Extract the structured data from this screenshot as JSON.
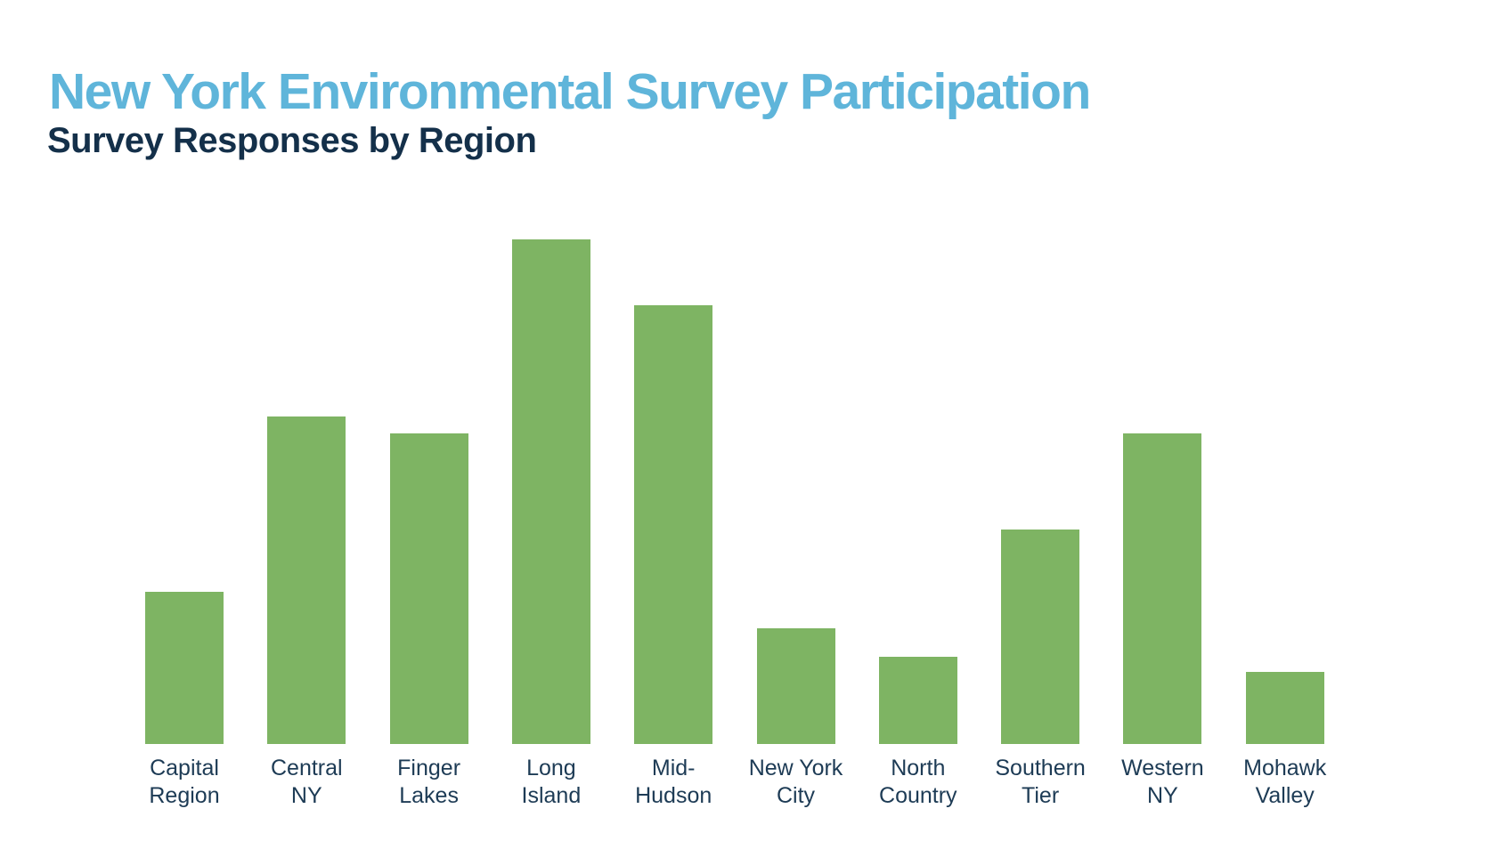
{
  "page": {
    "background_color": "#ffffff"
  },
  "header": {
    "title": "New York Environmental Survey Participation",
    "subtitle": "Survey Responses by Region",
    "title_color": "#5fb5da",
    "subtitle_color": "#14304a"
  },
  "chart_data": {
    "type": "bar",
    "title": "New York Environmental Survey Participation",
    "subtitle": "Survey Responses by Region",
    "categories": [
      "Capital Region",
      "Central NY",
      "Finger Lakes",
      "Long Island",
      "Mid-Hudson",
      "New York City",
      "North Country",
      "Southern Tier",
      "Western NY",
      "Mohawk Valley"
    ],
    "category_label_lines": [
      [
        "Capital",
        "Region"
      ],
      [
        "Central",
        "NY"
      ],
      [
        "Finger",
        "Lakes"
      ],
      [
        "Long",
        "Island"
      ],
      [
        "Mid-",
        "Hudson"
      ],
      [
        "New York",
        "City"
      ],
      [
        "North",
        "Country"
      ],
      [
        "Southern",
        "Tier"
      ],
      [
        "Western",
        "NY"
      ],
      [
        "Mohawk",
        "Valley"
      ]
    ],
    "values": [
      171,
      368,
      349,
      567,
      493,
      130,
      98,
      241,
      349,
      81
    ],
    "values_unit": "relative bar height (no y-axis, gridlines, or value labels shown in chart)",
    "percent_of_max": [
      30,
      65,
      62,
      100,
      87,
      23,
      17,
      43,
      62,
      14
    ],
    "xlabel": "",
    "ylabel": "",
    "ylim": [
      0,
      640
    ],
    "bar_color": "#7eb463",
    "label_color": "#1d3b55",
    "grid": false,
    "legend": false,
    "y_axis_visible": false,
    "x_axis_line_visible": false
  }
}
